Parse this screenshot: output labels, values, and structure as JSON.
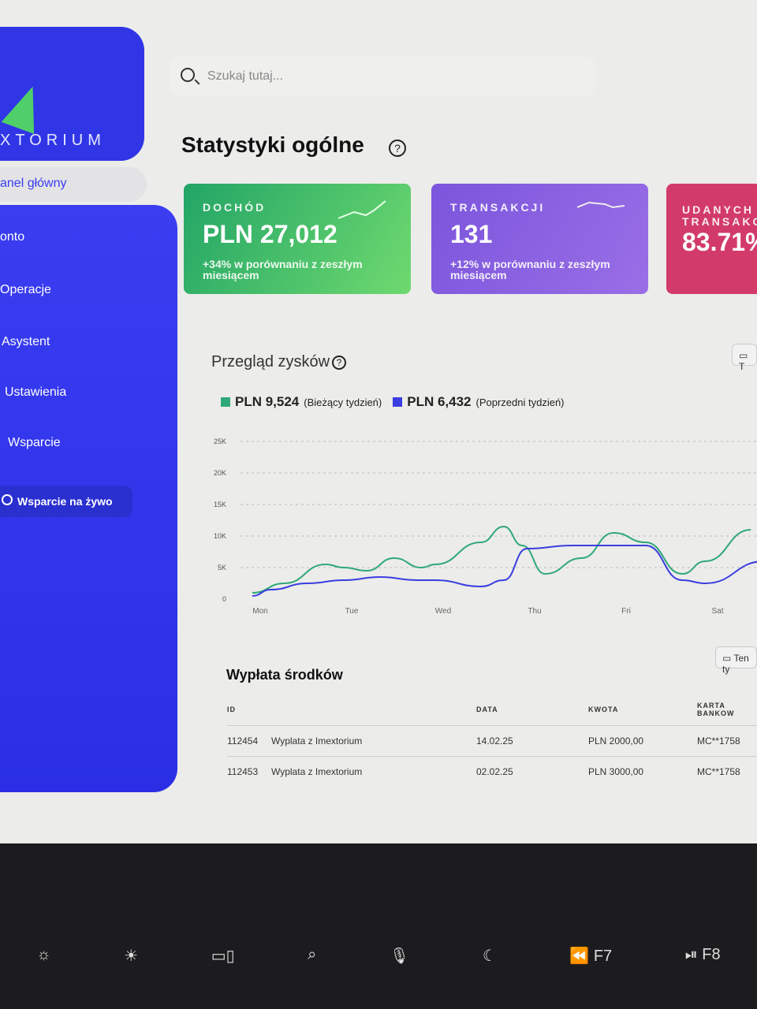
{
  "brand": {
    "name": "XTORIUM"
  },
  "search": {
    "placeholder": "Szukaj tutaj..."
  },
  "sidebar": {
    "items": [
      {
        "label": "anel główny"
      },
      {
        "label": "onto"
      },
      {
        "label": "Operacje"
      },
      {
        "label": "Asystent"
      },
      {
        "label": "Ustawienia"
      },
      {
        "label": "Wsparcie"
      }
    ],
    "live_support": "Wsparcie na żywo"
  },
  "page_title": "Statystyki ogólne",
  "cards": [
    {
      "label": "DOCHÓD",
      "value": "PLN 27,012",
      "sub": "+34% w porównaniu z zeszłym miesiącem",
      "color": "#3fbf6f"
    },
    {
      "label": "TRANSAKCJI",
      "value": "131",
      "sub": "+12% w porównaniu z zeszłym miesiącem",
      "color": "#8a5fe0"
    },
    {
      "label": "UDANYCH TRANSAKCJI",
      "value": "83.71%",
      "color": "#d23a6a"
    }
  ],
  "profit": {
    "title": "Przegląd zysków",
    "date_button": "T",
    "legend": [
      {
        "value": "PLN 9,524",
        "label": "(Bieżący tydzień)",
        "color": "#2fa878"
      },
      {
        "value": "PLN 6,432",
        "label": "(Poprzedni tydzień)",
        "color": "#3a3de0"
      }
    ]
  },
  "chart_data": {
    "type": "line",
    "categories": [
      "Mon",
      "Tue",
      "Wed",
      "Thu",
      "Fri",
      "Sat"
    ],
    "y_ticks": [
      "0",
      "5K",
      "10K",
      "15K",
      "20K",
      "25K"
    ],
    "ylim": [
      0,
      25000
    ],
    "grid": true,
    "series": [
      {
        "name": "Bieżący tydzień",
        "color": "#2fa878",
        "x": [
          0,
          0.35,
          0.8,
          1,
          1.25,
          1.55,
          1.85,
          2,
          2.5,
          2.75,
          2.95,
          3.2,
          3.6,
          3.95,
          4.3,
          4.7,
          4.95,
          5.45
        ],
        "values": [
          1000,
          2500,
          5500,
          5000,
          4500,
          6500,
          5000,
          5500,
          9000,
          11500,
          8500,
          4000,
          6500,
          10500,
          9000,
          4000,
          6000,
          11000
        ]
      },
      {
        "name": "Poprzedni tydzień",
        "color": "#3a3de0",
        "x": [
          0,
          0.2,
          0.6,
          1,
          1.4,
          1.8,
          2,
          2.5,
          2.75,
          3,
          3.5,
          3.95,
          4.3,
          4.7,
          4.95,
          5.6
        ],
        "values": [
          500,
          1500,
          2500,
          3000,
          3500,
          3000,
          3000,
          2000,
          3000,
          8000,
          8500,
          8500,
          8500,
          3000,
          2500,
          6000
        ]
      }
    ]
  },
  "withdrawals": {
    "title": "Wypłata środków",
    "date_button": "Ten ty",
    "columns": [
      "ID",
      "",
      "DATA",
      "KWOTA",
      "KARTA BANKOW"
    ],
    "rows": [
      [
        "112454",
        "Wyplata z Imextorium",
        "14.02.25",
        "PLN 2000,00",
        "MC**1758"
      ],
      [
        "112453",
        "Wyplata z Imextorium",
        "02.02.25",
        "PLN 3000,00",
        "MC**1758"
      ]
    ]
  },
  "keyboard": {
    "keys": [
      "☼",
      "☀",
      "▭▯",
      "⌕",
      "🎙",
      "☾",
      "⏪ F7",
      "⏯ F8"
    ]
  }
}
